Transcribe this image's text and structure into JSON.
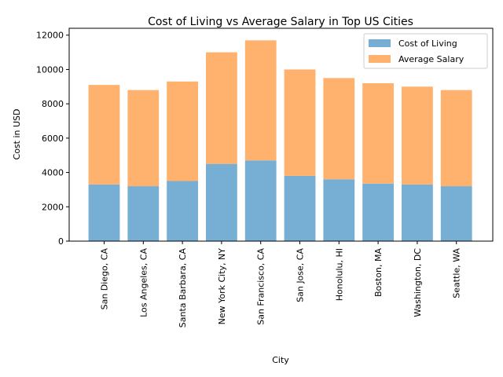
{
  "chart_data": {
    "type": "bar",
    "stacked": true,
    "title": "Cost of Living vs Average Salary in Top US Cities",
    "xlabel": "City",
    "ylabel": "Cost in USD",
    "categories": [
      "San Diego, CA",
      "Los Angeles, CA",
      "Santa Barbara, CA",
      "New York City, NY",
      "San Francisco, CA",
      "San Jose, CA",
      "Honolulu, HI",
      "Boston, MA",
      "Washington, DC",
      "Seattle, WA"
    ],
    "series": [
      {
        "name": "Cost of Living",
        "color": "#77aed3",
        "values": [
          3300,
          3200,
          3500,
          4500,
          4700,
          3800,
          3600,
          3350,
          3300,
          3200
        ]
      },
      {
        "name": "Average Salary",
        "color": "#ffb26e",
        "values": [
          5800,
          5600,
          5800,
          6500,
          7000,
          6200,
          5900,
          5850,
          5700,
          5600
        ]
      }
    ],
    "ylim": [
      0,
      12400
    ],
    "yticks": [
      0,
      2000,
      4000,
      6000,
      8000,
      10000,
      12000
    ],
    "legend_position": "top-right",
    "grid": false
  }
}
